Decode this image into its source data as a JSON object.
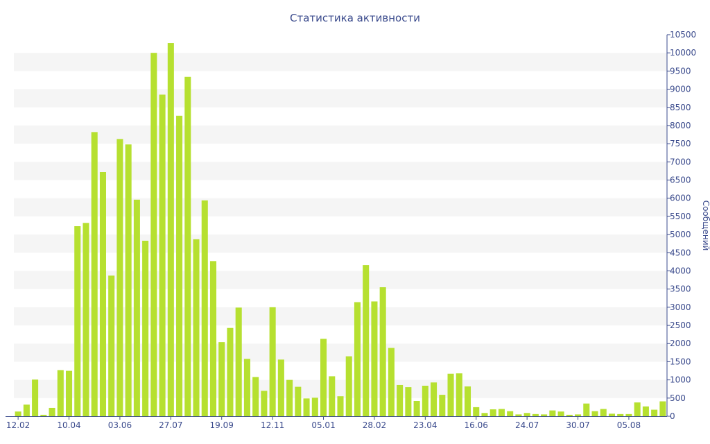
{
  "chart_data": {
    "type": "bar",
    "title": "Статистика активности",
    "xlabel": "",
    "ylabel": "Сообщений",
    "ylim": [
      0,
      10500
    ],
    "y_axis_side": "right",
    "grid": "alternating horizontal bands",
    "colors": {
      "bar": "#b6e030",
      "band": "#f5f5f5",
      "axis": "#3a4a8c",
      "text": "#3a4a8c"
    },
    "x_tick_labels": [
      "12.02",
      "10.04",
      "03.06",
      "27.07",
      "19.09",
      "12.11",
      "05.01",
      "28.02",
      "23.04",
      "16.06",
      "24.07",
      "30.07",
      "05.08"
    ],
    "y_ticks": [
      0,
      500,
      1000,
      1500,
      2000,
      2500,
      3000,
      3500,
      4000,
      4500,
      5000,
      5500,
      6000,
      6500,
      7000,
      7500,
      8000,
      8500,
      9000,
      9500,
      10000,
      10500
    ],
    "values": [
      130,
      320,
      1010,
      40,
      230,
      1270,
      1250,
      5230,
      5320,
      7820,
      6720,
      3870,
      7630,
      7480,
      5960,
      4830,
      10000,
      8850,
      10270,
      8270,
      9340,
      4870,
      5940,
      4270,
      2040,
      2430,
      2990,
      1580,
      1080,
      700,
      3000,
      1560,
      1000,
      810,
      490,
      510,
      2130,
      1100,
      550,
      1650,
      3140,
      4160,
      3160,
      3550,
      1880,
      860,
      800,
      420,
      840,
      930,
      590,
      1170,
      1180,
      820,
      250,
      90,
      190,
      200,
      140,
      50,
      90,
      60,
      50,
      160,
      130,
      40,
      50,
      350,
      140,
      200,
      70,
      60,
      60,
      380,
      270,
      180,
      410
    ]
  }
}
